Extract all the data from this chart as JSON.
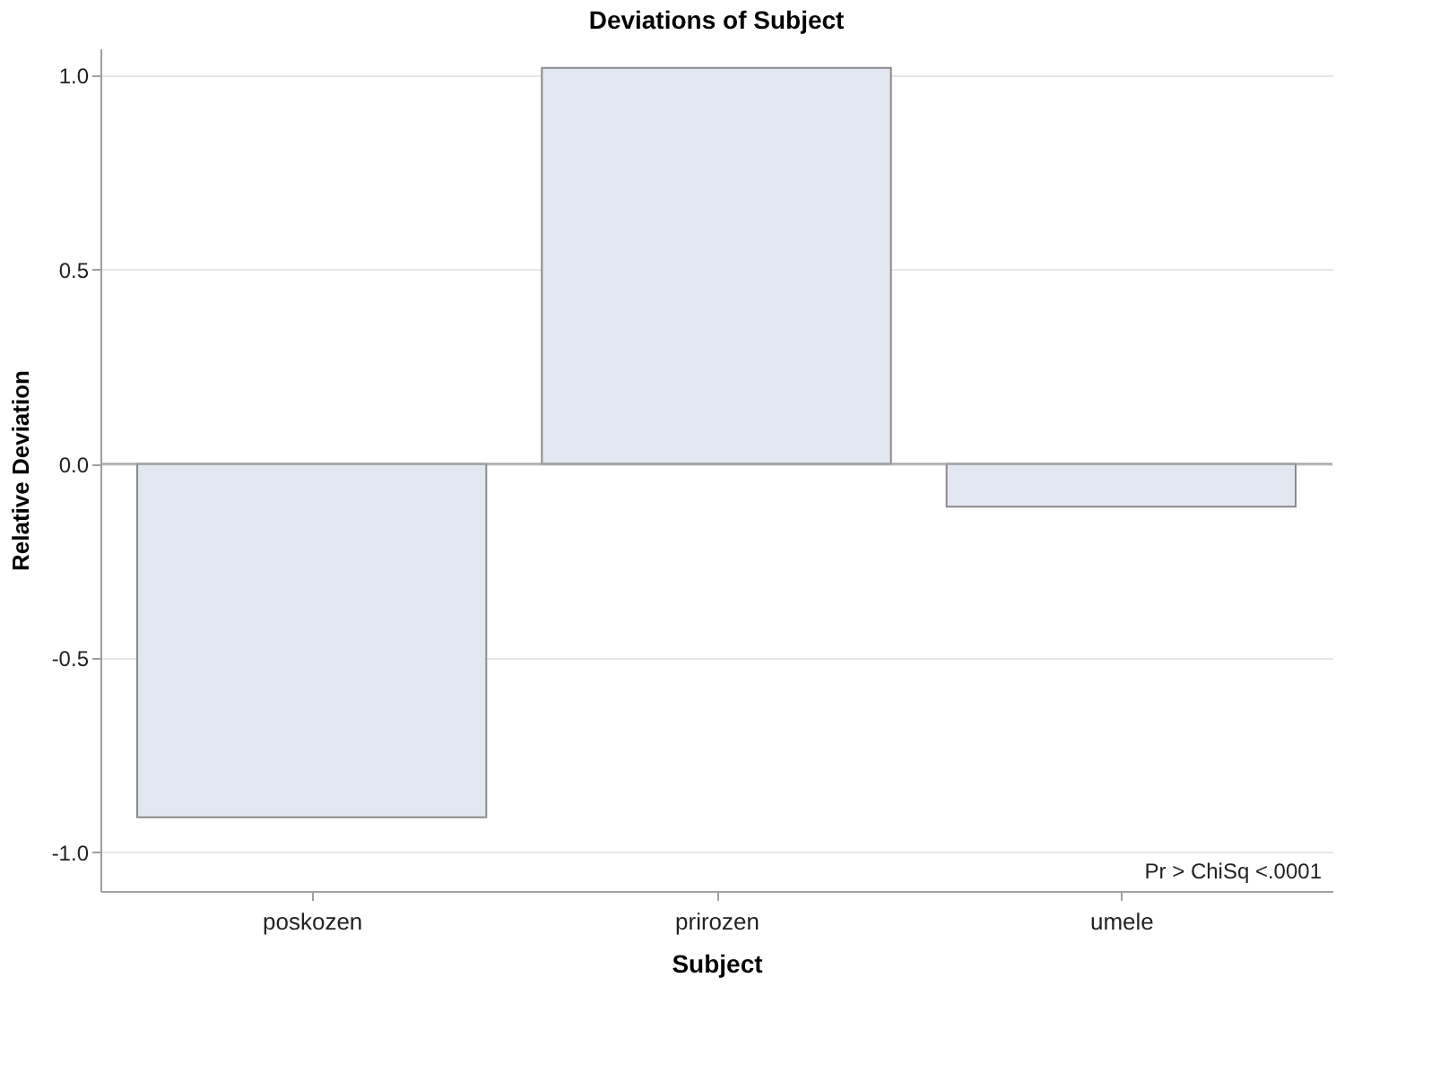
{
  "chart_data": {
    "type": "bar",
    "title": "Deviations of Subject",
    "xlabel": "Subject",
    "ylabel": "Relative Deviation",
    "categories": [
      "poskozen",
      "prirozen",
      "umele"
    ],
    "series": [
      {
        "color": "#e3e7f1",
        "values": [
          -0.91,
          1.02,
          -0.11
        ]
      }
    ],
    "ylim": [
      -1.1,
      1.07
    ],
    "yticks": [
      {
        "value": -1,
        "label": "-1.0"
      },
      {
        "value": -0.5,
        "label": "-0.5"
      },
      {
        "value": 0,
        "label": "0.0"
      },
      {
        "value": 0.5,
        "label": "0.5"
      },
      {
        "value": 1,
        "label": "1.0"
      }
    ],
    "grid": "y",
    "ref_lines": [
      {
        "axis": "y",
        "value": 0,
        "color": "#a0a0a0"
      }
    ],
    "annotations": [
      "Pr > ChiSq   <.0001"
    ]
  }
}
